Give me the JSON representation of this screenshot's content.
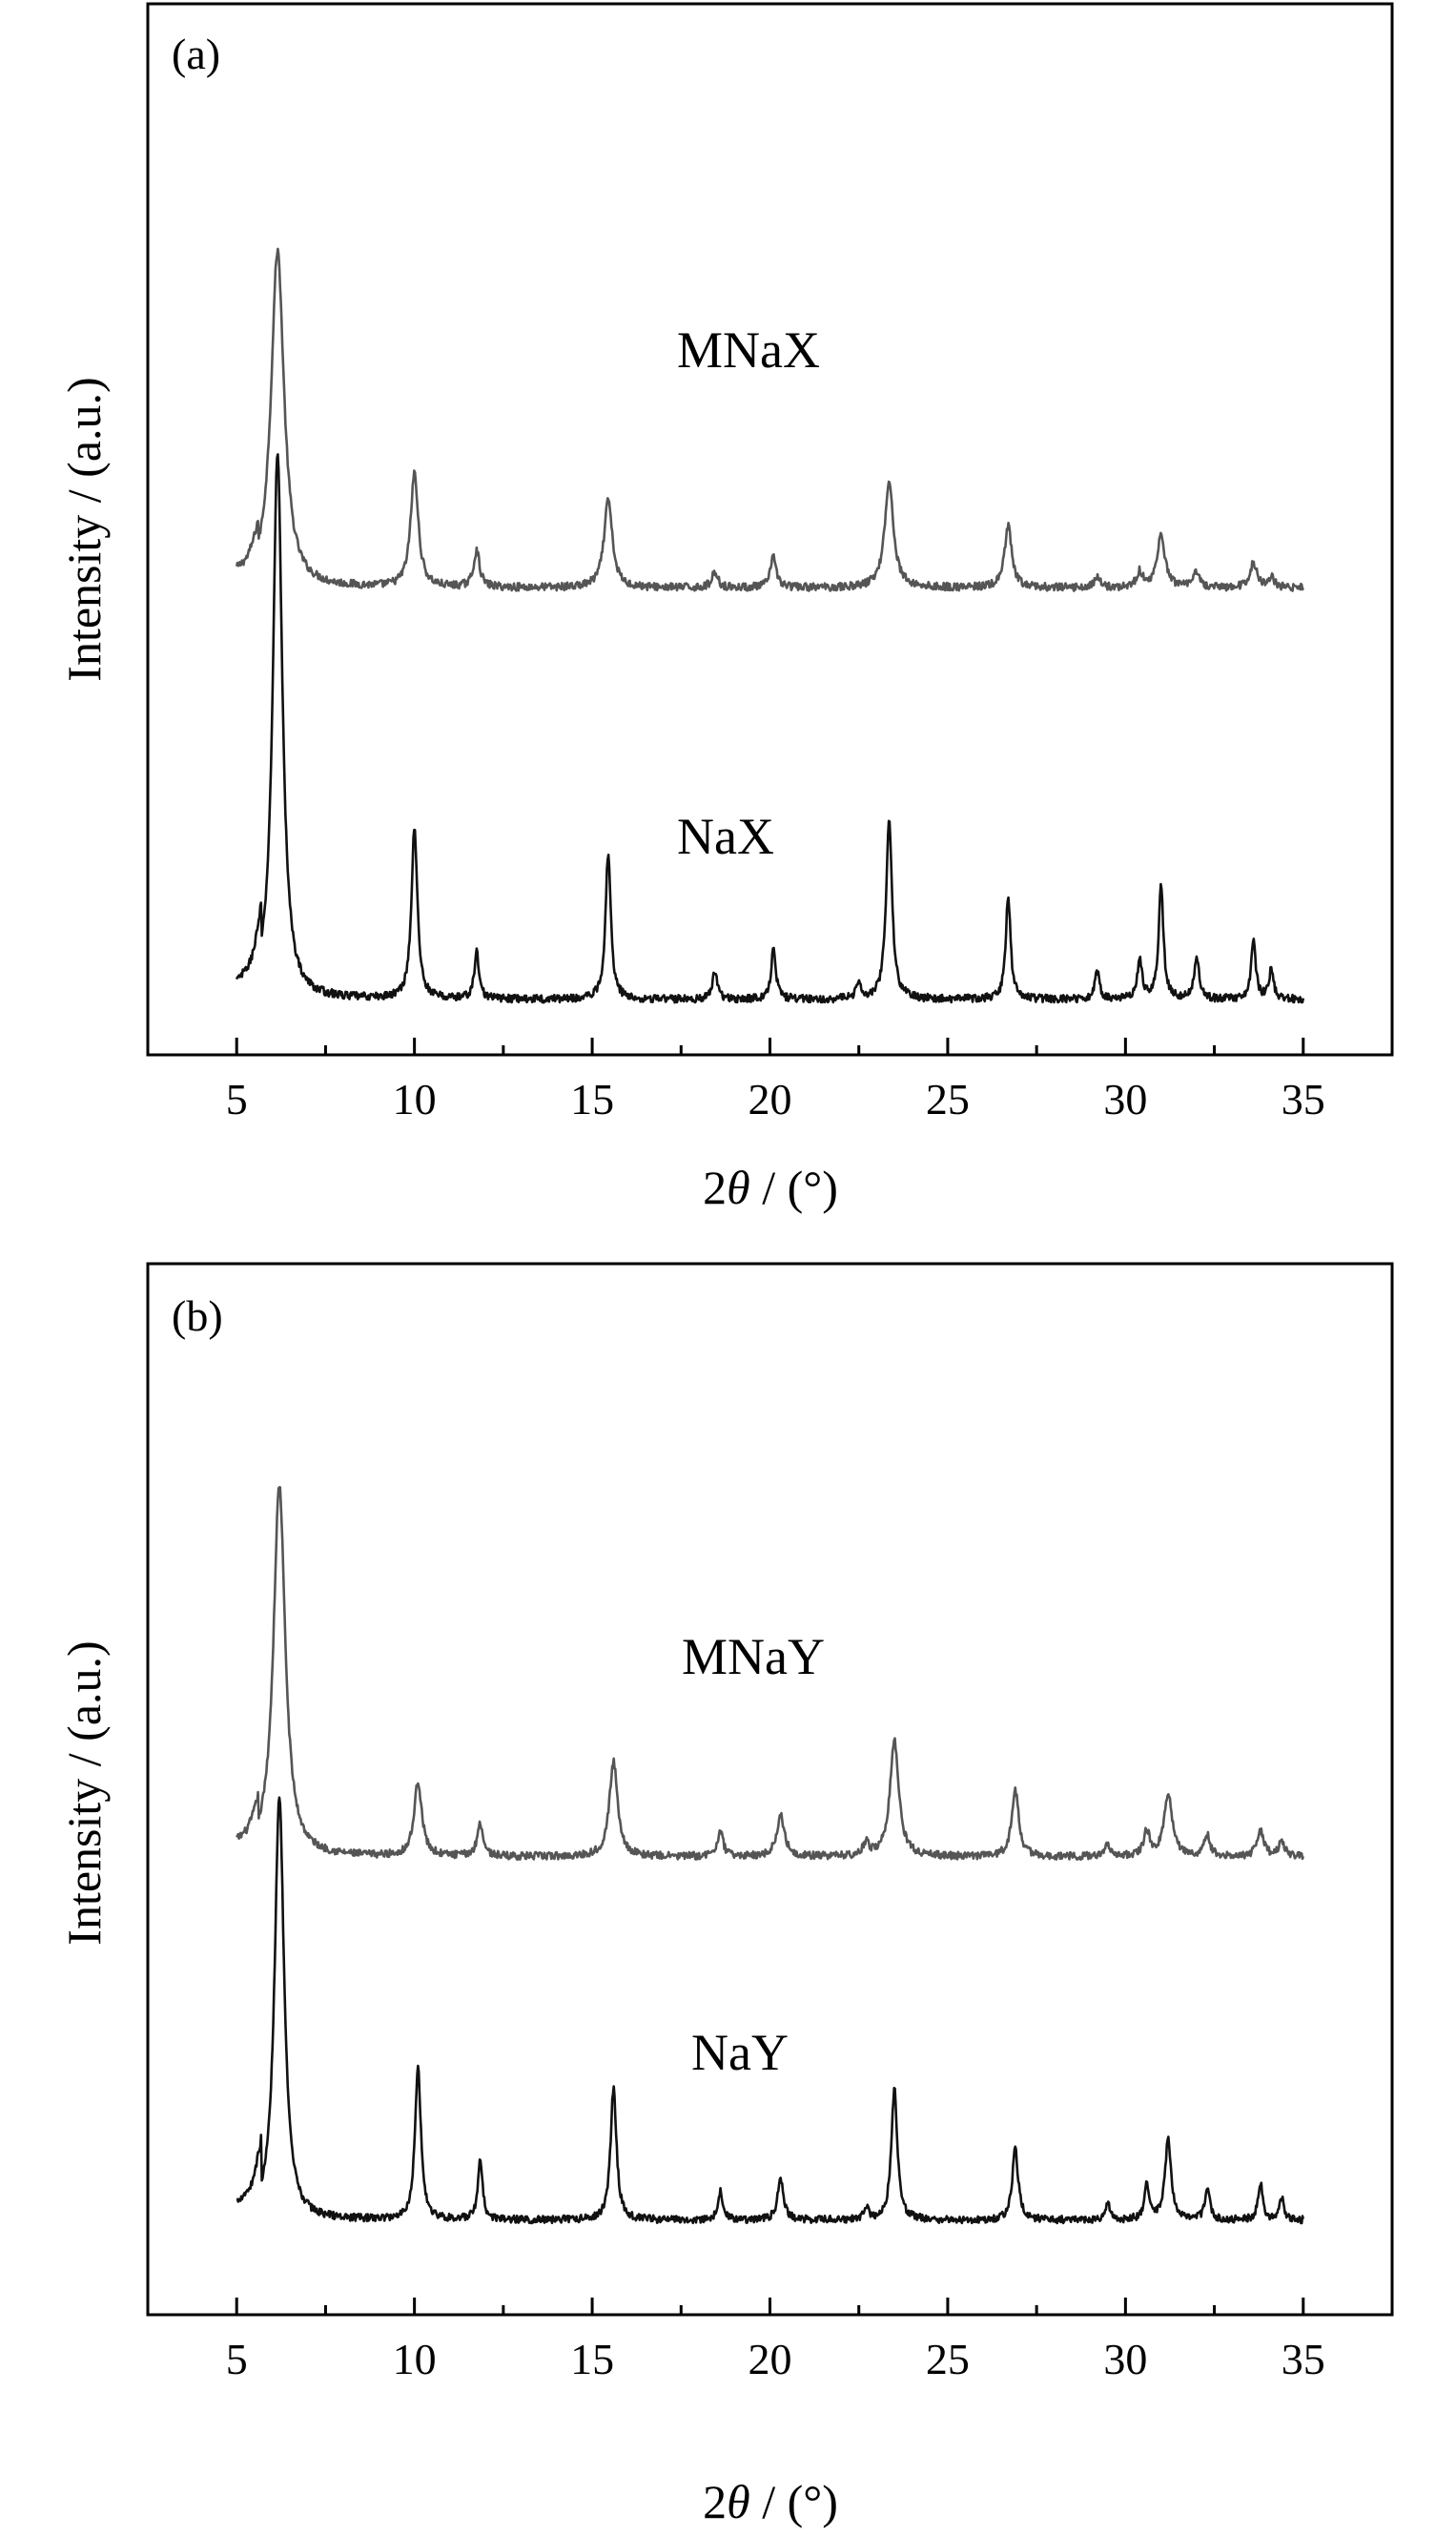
{
  "chart_data": [
    {
      "type": "line",
      "panel_label": "(a)",
      "xlabel_prefix": "2",
      "xlabel_symbol": "θ",
      "xlabel_suffix": " / (°)",
      "ylabel": "Intensity / (a.u.)",
      "xlim": [
        2.5,
        37.5
      ],
      "ylim": [
        0,
        100
      ],
      "xticks": [
        5,
        10,
        15,
        20,
        25,
        30,
        35
      ],
      "grid": false,
      "series": [
        {
          "name": "MNaX",
          "color": "#555555",
          "baseline": 47,
          "noise": 0.45,
          "base_shape": [
            [
              5,
              1.0
            ],
            [
              5.3,
              1.2
            ],
            [
              5.6,
              2.5
            ]
          ],
          "peaks": [
            [
              6.15,
              38.5,
              0.22
            ],
            [
              10.0,
              13.0,
              0.13
            ],
            [
              11.75,
              4.2,
              0.1
            ],
            [
              15.45,
              10.0,
              0.14
            ],
            [
              18.45,
              1.8,
              0.1
            ],
            [
              20.1,
              3.5,
              0.1
            ],
            [
              23.35,
              12.0,
              0.15
            ],
            [
              26.7,
              7.0,
              0.12
            ],
            [
              29.2,
              1.2,
              0.1
            ],
            [
              30.4,
              1.8,
              0.1
            ],
            [
              31.0,
              6.0,
              0.13
            ],
            [
              32.0,
              1.8,
              0.1
            ],
            [
              33.6,
              2.8,
              0.12
            ],
            [
              34.1,
              1.2,
              0.1
            ]
          ]
        },
        {
          "name": "NaX",
          "color": "#111111",
          "baseline": 0,
          "noise": 0.45,
          "base_shape": [
            [
              5,
              1.0
            ],
            [
              5.4,
              1.8
            ],
            [
              5.7,
              4.5
            ]
          ],
          "peaks": [
            [
              6.15,
              62.5,
              0.16
            ],
            [
              10.0,
              19.5,
              0.1
            ],
            [
              11.75,
              5.3,
              0.08
            ],
            [
              15.45,
              16.8,
              0.09
            ],
            [
              18.45,
              3.2,
              0.08
            ],
            [
              20.1,
              5.8,
              0.08
            ],
            [
              22.5,
              1.8,
              0.08
            ],
            [
              23.35,
              20.5,
              0.1
            ],
            [
              26.7,
              12.0,
              0.08
            ],
            [
              29.2,
              3.2,
              0.08
            ],
            [
              30.4,
              4.5,
              0.08
            ],
            [
              31.0,
              13.0,
              0.08
            ],
            [
              32.0,
              5.0,
              0.08
            ],
            [
              33.6,
              6.5,
              0.08
            ],
            [
              34.1,
              3.3,
              0.08
            ]
          ]
        }
      ]
    },
    {
      "type": "line",
      "panel_label": "(b)",
      "xlabel_prefix": "2",
      "xlabel_symbol": "θ",
      "xlabel_suffix": " / (°)",
      "ylabel": "Intensity / (a.u.)",
      "xlim": [
        2.5,
        37.5
      ],
      "ylim": [
        0,
        100
      ],
      "xticks": [
        5,
        10,
        15,
        20,
        25,
        30,
        35
      ],
      "grid": false,
      "series": [
        {
          "name": "MNaY",
          "color": "#555555",
          "baseline": 44,
          "noise": 0.45,
          "base_shape": [
            [
              5,
              1.0
            ],
            [
              5.3,
              1.3
            ],
            [
              5.6,
              3.0
            ]
          ],
          "peaks": [
            [
              6.2,
              45.0,
              0.2
            ],
            [
              10.1,
              9.0,
              0.13
            ],
            [
              11.85,
              4.0,
              0.1
            ],
            [
              15.6,
              11.5,
              0.14
            ],
            [
              18.6,
              3.0,
              0.1
            ],
            [
              20.3,
              5.0,
              0.13
            ],
            [
              22.7,
              1.5,
              0.1
            ],
            [
              23.5,
              14.0,
              0.15
            ],
            [
              26.9,
              8.0,
              0.12
            ],
            [
              29.5,
              1.5,
              0.1
            ],
            [
              30.6,
              3.0,
              0.1
            ],
            [
              31.2,
              7.5,
              0.14
            ],
            [
              32.3,
              2.5,
              0.1
            ],
            [
              33.8,
              3.0,
              0.12
            ],
            [
              34.4,
              1.8,
              0.1
            ]
          ]
        },
        {
          "name": "NaY",
          "color": "#111111",
          "baseline": 0,
          "noise": 0.45,
          "base_shape": [
            [
              5,
              1.5
            ],
            [
              5.4,
              2.2
            ],
            [
              5.7,
              5.5
            ]
          ],
          "peaks": [
            [
              6.2,
              51.5,
              0.16
            ],
            [
              10.1,
              18.5,
              0.1
            ],
            [
              11.85,
              7.0,
              0.08
            ],
            [
              15.6,
              16.0,
              0.1
            ],
            [
              18.6,
              3.5,
              0.08
            ],
            [
              20.3,
              5.0,
              0.1
            ],
            [
              22.7,
              1.5,
              0.08
            ],
            [
              23.5,
              16.0,
              0.1
            ],
            [
              26.9,
              8.5,
              0.1
            ],
            [
              29.5,
              2.0,
              0.08
            ],
            [
              30.6,
              4.5,
              0.08
            ],
            [
              31.2,
              10.0,
              0.1
            ],
            [
              32.3,
              4.0,
              0.08
            ],
            [
              33.8,
              4.5,
              0.08
            ],
            [
              34.4,
              2.5,
              0.08
            ]
          ]
        }
      ]
    }
  ]
}
